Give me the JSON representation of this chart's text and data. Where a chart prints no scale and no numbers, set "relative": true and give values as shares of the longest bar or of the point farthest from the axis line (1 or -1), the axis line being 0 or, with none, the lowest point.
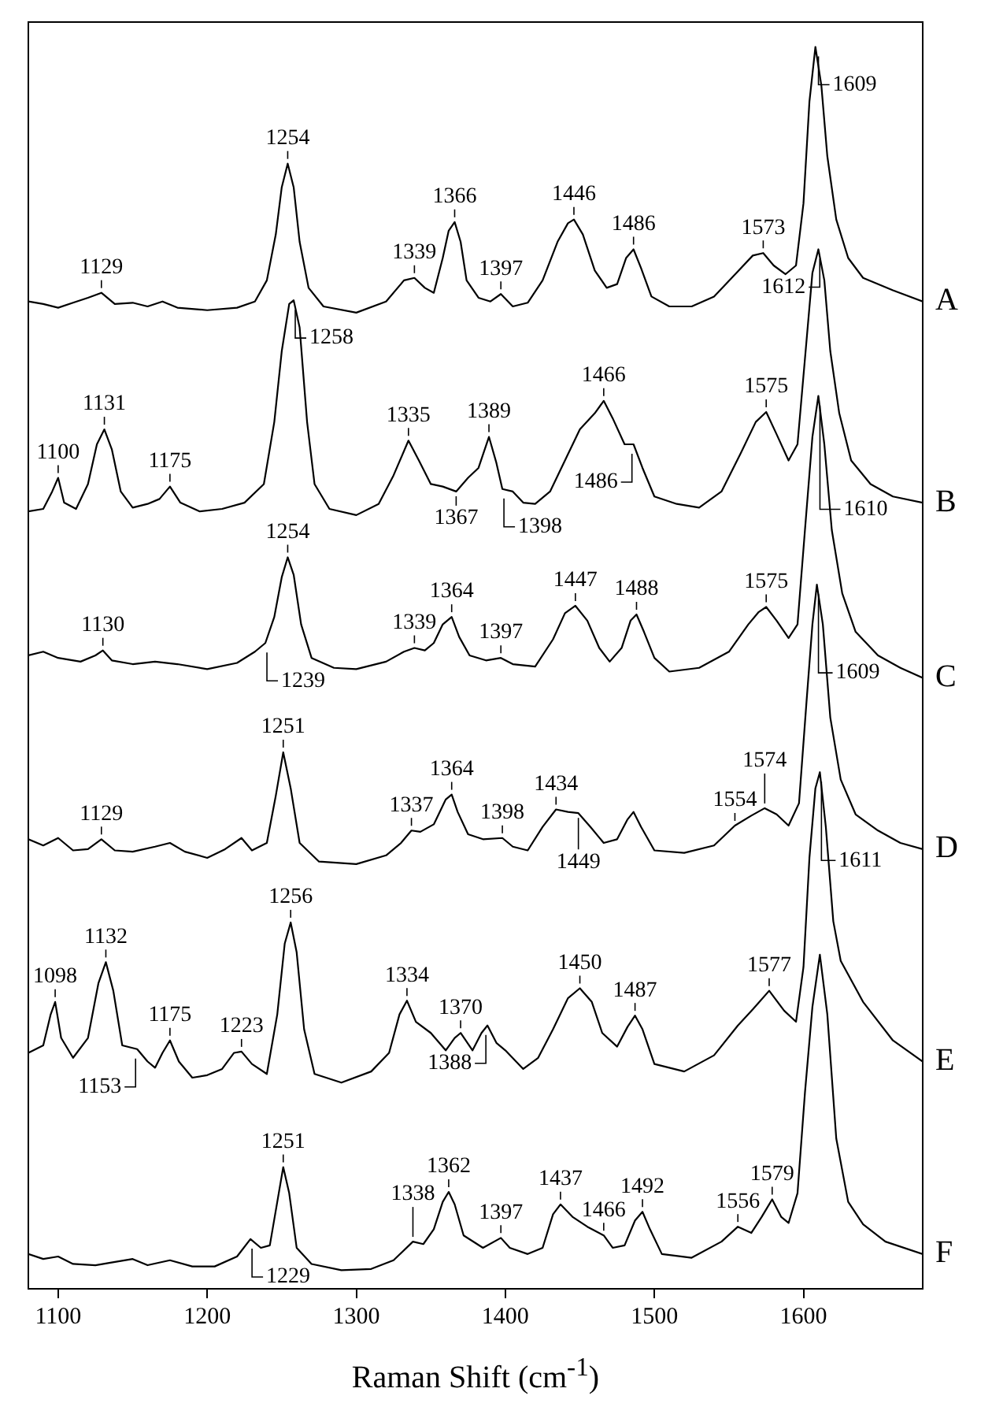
{
  "chart_data": {
    "type": "line",
    "relative": true,
    "xlabel": "Raman Shift (cm$^{-1}$)",
    "xlim": [
      1080,
      1680
    ],
    "xticks": [
      1100,
      1200,
      1300,
      1400,
      1500,
      1600
    ],
    "series": [
      {
        "name": "A",
        "color": "#000000",
        "x": [
          1080,
          1090,
          1100,
          1110,
          1120,
          1129,
          1138,
          1150,
          1160,
          1170,
          1180,
          1200,
          1220,
          1232,
          1240,
          1246,
          1250,
          1254,
          1258,
          1262,
          1268,
          1278,
          1300,
          1320,
          1332,
          1339,
          1346,
          1352,
          1358,
          1362,
          1366,
          1370,
          1374,
          1382,
          1390,
          1397,
          1405,
          1415,
          1425,
          1435,
          1442,
          1446,
          1452,
          1460,
          1468,
          1475,
          1481,
          1486,
          1491,
          1498,
          1510,
          1525,
          1540,
          1555,
          1566,
          1573,
          1580,
          1588,
          1595,
          1600,
          1604,
          1608,
          1612,
          1616,
          1622,
          1630,
          1640,
          1660,
          1680
        ],
        "values": [
          0.795,
          0.793,
          0.79,
          0.794,
          0.798,
          0.802,
          0.793,
          0.794,
          0.791,
          0.795,
          0.79,
          0.788,
          0.79,
          0.795,
          0.812,
          0.849,
          0.887,
          0.906,
          0.887,
          0.843,
          0.806,
          0.791,
          0.786,
          0.795,
          0.812,
          0.814,
          0.806,
          0.802,
          0.83,
          0.852,
          0.859,
          0.843,
          0.812,
          0.798,
          0.795,
          0.801,
          0.791,
          0.794,
          0.812,
          0.843,
          0.858,
          0.861,
          0.849,
          0.82,
          0.806,
          0.809,
          0.83,
          0.837,
          0.822,
          0.799,
          0.791,
          0.791,
          0.799,
          0.818,
          0.832,
          0.834,
          0.824,
          0.817,
          0.824,
          0.874,
          0.956,
          1.0,
          0.969,
          0.912,
          0.861,
          0.83,
          0.814,
          0.804,
          0.795
        ]
      },
      {
        "name": "B",
        "color": "#000000",
        "x": [
          1080,
          1090,
          1096,
          1100,
          1104,
          1112,
          1120,
          1126,
          1131,
          1136,
          1142,
          1150,
          1160,
          1168,
          1175,
          1182,
          1195,
          1210,
          1225,
          1238,
          1245,
          1250,
          1255,
          1258,
          1262,
          1267,
          1272,
          1282,
          1300,
          1315,
          1325,
          1335,
          1342,
          1350,
          1358,
          1367,
          1375,
          1382,
          1389,
          1394,
          1398,
          1405,
          1412,
          1420,
          1430,
          1440,
          1450,
          1460,
          1466,
          1472,
          1480,
          1486,
          1492,
          1500,
          1515,
          1530,
          1545,
          1558,
          1568,
          1575,
          1582,
          1590,
          1596,
          1601,
          1606,
          1610,
          1614,
          1618,
          1624,
          1632,
          1645,
          1660,
          1680
        ],
        "values": [
          0.626,
          0.628,
          0.642,
          0.653,
          0.633,
          0.628,
          0.648,
          0.68,
          0.692,
          0.676,
          0.642,
          0.629,
          0.632,
          0.636,
          0.646,
          0.633,
          0.626,
          0.628,
          0.633,
          0.648,
          0.698,
          0.755,
          0.793,
          0.796,
          0.774,
          0.698,
          0.648,
          0.628,
          0.623,
          0.632,
          0.655,
          0.683,
          0.667,
          0.648,
          0.646,
          0.642,
          0.653,
          0.661,
          0.686,
          0.665,
          0.644,
          0.642,
          0.633,
          0.632,
          0.642,
          0.667,
          0.692,
          0.705,
          0.715,
          0.701,
          0.68,
          0.68,
          0.661,
          0.638,
          0.632,
          0.629,
          0.642,
          0.673,
          0.698,
          0.706,
          0.688,
          0.667,
          0.68,
          0.749,
          0.818,
          0.837,
          0.812,
          0.755,
          0.705,
          0.667,
          0.648,
          0.638,
          0.633
        ]
      },
      {
        "name": "C",
        "color": "#000000",
        "x": [
          1080,
          1090,
          1100,
          1115,
          1125,
          1130,
          1136,
          1150,
          1165,
          1180,
          1200,
          1220,
          1232,
          1239,
          1245,
          1250,
          1254,
          1258,
          1263,
          1270,
          1285,
          1300,
          1320,
          1332,
          1339,
          1346,
          1352,
          1358,
          1364,
          1369,
          1376,
          1387,
          1397,
          1405,
          1420,
          1432,
          1440,
          1447,
          1455,
          1463,
          1470,
          1478,
          1484,
          1488,
          1493,
          1500,
          1510,
          1530,
          1550,
          1563,
          1570,
          1575,
          1582,
          1590,
          1596,
          1601,
          1606,
          1610,
          1614,
          1619,
          1626,
          1635,
          1650,
          1665,
          1680
        ],
        "values": [
          0.51,
          0.513,
          0.508,
          0.505,
          0.51,
          0.514,
          0.506,
          0.503,
          0.505,
          0.503,
          0.499,
          0.504,
          0.513,
          0.52,
          0.541,
          0.573,
          0.589,
          0.575,
          0.535,
          0.508,
          0.5,
          0.499,
          0.505,
          0.513,
          0.516,
          0.514,
          0.52,
          0.535,
          0.541,
          0.525,
          0.51,
          0.506,
          0.508,
          0.503,
          0.501,
          0.523,
          0.544,
          0.55,
          0.538,
          0.516,
          0.505,
          0.516,
          0.538,
          0.543,
          0.529,
          0.508,
          0.497,
          0.5,
          0.513,
          0.535,
          0.545,
          0.549,
          0.538,
          0.524,
          0.535,
          0.611,
          0.686,
          0.719,
          0.68,
          0.611,
          0.56,
          0.529,
          0.51,
          0.5,
          0.492
        ]
      },
      {
        "name": "D",
        "color": "#000000",
        "x": [
          1080,
          1090,
          1100,
          1110,
          1120,
          1129,
          1138,
          1150,
          1165,
          1175,
          1185,
          1200,
          1212,
          1223,
          1230,
          1240,
          1246,
          1251,
          1256,
          1262,
          1275,
          1300,
          1320,
          1330,
          1337,
          1343,
          1352,
          1360,
          1364,
          1368,
          1375,
          1385,
          1398,
          1405,
          1415,
          1425,
          1434,
          1442,
          1449,
          1457,
          1466,
          1475,
          1482,
          1486,
          1491,
          1500,
          1520,
          1540,
          1554,
          1565,
          1574,
          1582,
          1590,
          1597,
          1602,
          1606,
          1609,
          1613,
          1618,
          1625,
          1635,
          1650,
          1665,
          1680
        ],
        "values": [
          0.362,
          0.357,
          0.363,
          0.353,
          0.354,
          0.362,
          0.353,
          0.352,
          0.356,
          0.359,
          0.352,
          0.347,
          0.354,
          0.363,
          0.353,
          0.359,
          0.397,
          0.432,
          0.403,
          0.359,
          0.344,
          0.342,
          0.349,
          0.359,
          0.369,
          0.368,
          0.374,
          0.394,
          0.398,
          0.384,
          0.366,
          0.362,
          0.363,
          0.356,
          0.353,
          0.372,
          0.386,
          0.384,
          0.383,
          0.372,
          0.359,
          0.362,
          0.378,
          0.384,
          0.372,
          0.353,
          0.351,
          0.357,
          0.373,
          0.381,
          0.387,
          0.382,
          0.373,
          0.391,
          0.472,
          0.535,
          0.567,
          0.535,
          0.46,
          0.41,
          0.382,
          0.369,
          0.359,
          0.354
        ]
      },
      {
        "name": "E",
        "color": "#000000",
        "x": [
          1080,
          1090,
          1095,
          1098,
          1102,
          1110,
          1120,
          1127,
          1132,
          1137,
          1143,
          1153,
          1160,
          1165,
          1170,
          1175,
          1181,
          1190,
          1200,
          1210,
          1218,
          1223,
          1230,
          1240,
          1247,
          1252,
          1256,
          1260,
          1265,
          1272,
          1290,
          1310,
          1322,
          1329,
          1334,
          1340,
          1350,
          1360,
          1366,
          1370,
          1378,
          1384,
          1388,
          1394,
          1400,
          1412,
          1422,
          1432,
          1442,
          1450,
          1458,
          1465,
          1475,
          1482,
          1487,
          1492,
          1500,
          1520,
          1540,
          1556,
          1566,
          1577,
          1587,
          1595,
          1600,
          1604,
          1608,
          1611,
          1615,
          1620,
          1625,
          1640,
          1660,
          1680
        ],
        "values": [
          0.19,
          0.196,
          0.221,
          0.231,
          0.202,
          0.186,
          0.202,
          0.246,
          0.263,
          0.24,
          0.196,
          0.193,
          0.183,
          0.178,
          0.19,
          0.2,
          0.183,
          0.17,
          0.172,
          0.177,
          0.19,
          0.191,
          0.181,
          0.173,
          0.221,
          0.278,
          0.295,
          0.271,
          0.209,
          0.173,
          0.166,
          0.175,
          0.19,
          0.221,
          0.232,
          0.215,
          0.206,
          0.192,
          0.202,
          0.206,
          0.192,
          0.206,
          0.212,
          0.198,
          0.192,
          0.177,
          0.186,
          0.209,
          0.234,
          0.242,
          0.231,
          0.206,
          0.195,
          0.211,
          0.22,
          0.209,
          0.181,
          0.175,
          0.188,
          0.212,
          0.225,
          0.24,
          0.224,
          0.215,
          0.259,
          0.347,
          0.403,
          0.416,
          0.372,
          0.296,
          0.264,
          0.231,
          0.2,
          0.183
        ]
      },
      {
        "name": "F",
        "color": "#000000",
        "x": [
          1080,
          1090,
          1100,
          1110,
          1125,
          1135,
          1150,
          1160,
          1175,
          1190,
          1205,
          1220,
          1229,
          1236,
          1242,
          1247,
          1251,
          1255,
          1260,
          1270,
          1290,
          1310,
          1325,
          1338,
          1345,
          1352,
          1358,
          1362,
          1366,
          1372,
          1385,
          1397,
          1403,
          1415,
          1425,
          1432,
          1437,
          1445,
          1455,
          1466,
          1472,
          1480,
          1487,
          1492,
          1497,
          1505,
          1525,
          1545,
          1556,
          1565,
          1572,
          1579,
          1585,
          1590,
          1596,
          1601,
          1606,
          1611,
          1616,
          1622,
          1630,
          1640,
          1655,
          1680
        ],
        "values": [
          0.028,
          0.024,
          0.026,
          0.02,
          0.019,
          0.021,
          0.024,
          0.019,
          0.023,
          0.018,
          0.018,
          0.026,
          0.04,
          0.033,
          0.035,
          0.07,
          0.098,
          0.077,
          0.033,
          0.02,
          0.015,
          0.016,
          0.023,
          0.038,
          0.036,
          0.048,
          0.07,
          0.078,
          0.068,
          0.043,
          0.033,
          0.041,
          0.033,
          0.028,
          0.033,
          0.06,
          0.068,
          0.058,
          0.05,
          0.043,
          0.033,
          0.035,
          0.055,
          0.062,
          0.048,
          0.028,
          0.025,
          0.038,
          0.05,
          0.045,
          0.058,
          0.072,
          0.058,
          0.053,
          0.077,
          0.158,
          0.227,
          0.269,
          0.221,
          0.121,
          0.07,
          0.052,
          0.038,
          0.028
        ]
      }
    ],
    "annotations": [
      {
        "text": "1129",
        "x": 1129,
        "y": 0.802
      },
      {
        "text": "1254",
        "x": 1254,
        "y": 0.906
      },
      {
        "text": "1339",
        "x": 1339,
        "y": 0.814
      },
      {
        "text": "1366",
        "x": 1366,
        "y": 0.859
      },
      {
        "text": "1397",
        "x": 1397,
        "y": 0.801
      },
      {
        "text": "1446",
        "x": 1446,
        "y": 0.861
      },
      {
        "text": "1486",
        "x": 1486,
        "y": 0.837
      },
      {
        "text": "1573",
        "x": 1573,
        "y": 0.834
      },
      {
        "text": "1609",
        "x": 1609,
        "y": 1.0
      },
      {
        "text": "1100",
        "x": 1100,
        "y": 0.653
      },
      {
        "text": "1131",
        "x": 1131,
        "y": 0.692
      },
      {
        "text": "1175",
        "x": 1175,
        "y": 0.646
      },
      {
        "text": "1258",
        "x": 1258,
        "y": 0.796
      },
      {
        "text": "1335",
        "x": 1335,
        "y": 0.683
      },
      {
        "text": "1367",
        "x": 1367,
        "y": 0.642
      },
      {
        "text": "1389",
        "x": 1389,
        "y": 0.686
      },
      {
        "text": "1398",
        "x": 1398,
        "y": 0.644
      },
      {
        "text": "1466",
        "x": 1466,
        "y": 0.715
      },
      {
        "text": "1486",
        "x": 1486,
        "y": 0.68
      },
      {
        "text": "1575",
        "x": 1575,
        "y": 0.706
      },
      {
        "text": "1612",
        "x": 1612,
        "y": 0.837
      },
      {
        "text": "1130",
        "x": 1130,
        "y": 0.514
      },
      {
        "text": "1239",
        "x": 1239,
        "y": 0.52
      },
      {
        "text": "1254",
        "x": 1254,
        "y": 0.589
      },
      {
        "text": "1339",
        "x": 1339,
        "y": 0.516
      },
      {
        "text": "1364",
        "x": 1364,
        "y": 0.541
      },
      {
        "text": "1397",
        "x": 1397,
        "y": 0.508
      },
      {
        "text": "1447",
        "x": 1447,
        "y": 0.55
      },
      {
        "text": "1488",
        "x": 1488,
        "y": 0.543
      },
      {
        "text": "1575",
        "x": 1575,
        "y": 0.549
      },
      {
        "text": "1610",
        "x": 1610,
        "y": 0.719
      },
      {
        "text": "1129",
        "x": 1129,
        "y": 0.362
      },
      {
        "text": "1251",
        "x": 1251,
        "y": 0.432
      },
      {
        "text": "1337",
        "x": 1337,
        "y": 0.369
      },
      {
        "text": "1364",
        "x": 1364,
        "y": 0.398
      },
      {
        "text": "1398",
        "x": 1398,
        "y": 0.363
      },
      {
        "text": "1434",
        "x": 1434,
        "y": 0.386
      },
      {
        "text": "1449",
        "x": 1449,
        "y": 0.383
      },
      {
        "text": "1554",
        "x": 1554,
        "y": 0.373
      },
      {
        "text": "1574",
        "x": 1574,
        "y": 0.387
      },
      {
        "text": "1609",
        "x": 1609,
        "y": 0.567
      },
      {
        "text": "1098",
        "x": 1098,
        "y": 0.231
      },
      {
        "text": "1132",
        "x": 1132,
        "y": 0.263
      },
      {
        "text": "1153",
        "x": 1153,
        "y": 0.193
      },
      {
        "text": "1175",
        "x": 1175,
        "y": 0.2
      },
      {
        "text": "1223",
        "x": 1223,
        "y": 0.191
      },
      {
        "text": "1256",
        "x": 1256,
        "y": 0.295
      },
      {
        "text": "1334",
        "x": 1334,
        "y": 0.232
      },
      {
        "text": "1370",
        "x": 1370,
        "y": 0.206
      },
      {
        "text": "1388",
        "x": 1388,
        "y": 0.212
      },
      {
        "text": "1450",
        "x": 1450,
        "y": 0.242
      },
      {
        "text": "1487",
        "x": 1487,
        "y": 0.22
      },
      {
        "text": "1577",
        "x": 1577,
        "y": 0.24
      },
      {
        "text": "1611",
        "x": 1611,
        "y": 0.416
      },
      {
        "text": "1229",
        "x": 1229,
        "y": 0.04
      },
      {
        "text": "1251",
        "x": 1251,
        "y": 0.098
      },
      {
        "text": "1338",
        "x": 1338,
        "y": 0.038
      },
      {
        "text": "1362",
        "x": 1362,
        "y": 0.078
      },
      {
        "text": "1397",
        "x": 1397,
        "y": 0.041
      },
      {
        "text": "1437",
        "x": 1437,
        "y": 0.068
      },
      {
        "text": "1466",
        "x": 1466,
        "y": 0.043
      },
      {
        "text": "1492",
        "x": 1492,
        "y": 0.062
      },
      {
        "text": "1556",
        "x": 1556,
        "y": 0.05
      },
      {
        "text": "1579",
        "x": 1579,
        "y": 0.072
      }
    ]
  }
}
